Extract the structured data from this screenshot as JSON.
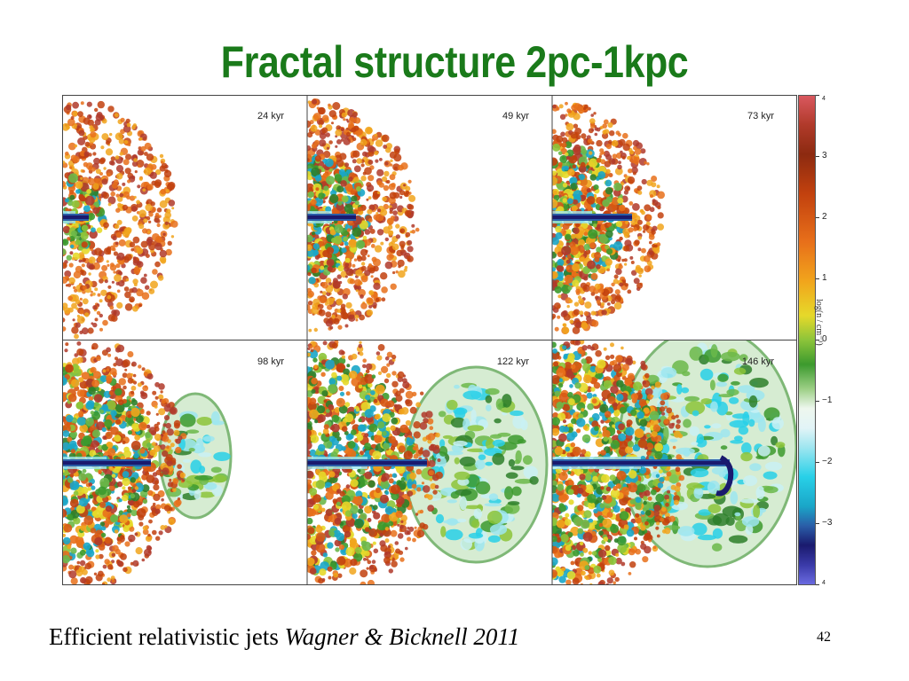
{
  "slide": {
    "title": "Fractal structure 2pc-1kpc",
    "caption_text": "Efficient relativistic jets ",
    "caption_reference": "Wagner & Bicknell 2011",
    "page_number": "42"
  },
  "panels": [
    {
      "time": "24 kyr"
    },
    {
      "time": "49 kyr"
    },
    {
      "time": "73 kyr"
    },
    {
      "time": "98 kyr"
    },
    {
      "time": "122 kyr"
    },
    {
      "time": "146 kyr"
    }
  ],
  "colorbar": {
    "ticks": [
      "4",
      "3",
      "2",
      "1",
      "0",
      "−1",
      "−2",
      "−3",
      "4"
    ],
    "label": "log(n / cm⁻³)",
    "colors": {
      "high": "#d9585f",
      "mid_high": "#e8701a",
      "yellow": "#e6d92a",
      "green": "#3c9a2e",
      "white": "#eef7ee",
      "cyan": "#28d0e8",
      "dark_blue": "#1a1a6e",
      "low": "#6a6ae0"
    }
  }
}
